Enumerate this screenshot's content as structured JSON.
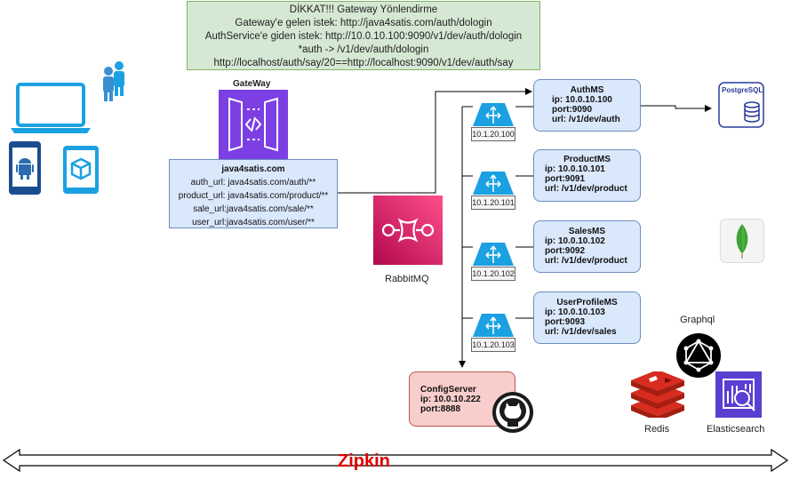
{
  "note": {
    "lines": [
      "DİKKAT!!! Gateway Yönlendirme",
      "Gateway'e gelen istek: http://java4satis.com/auth/dologin",
      "AuthService'e giden istek: http://10.0.10.100:9090/v1/dev/auth/dologin",
      "*auth -> /v1/dev/auth/dologin",
      "http://localhost/auth/say/20==http://localhost:9090/v1/dev/auth/say"
    ]
  },
  "gateway": {
    "label": "GateWay",
    "domain": "java4satis.com",
    "routes": [
      "auth_url: java4satis.com/auth/**",
      "product_url: java4satis.com/product/**",
      "sale_url:java4satis.com/sale/**",
      "user_url:java4satis.com/user/**"
    ]
  },
  "rabbitmq": {
    "label": "RabbitMQ"
  },
  "services": [
    {
      "title": "AuthMS",
      "ip": "ip: 10.0.10.100",
      "port": "port:9090",
      "url": "url: /v1/dev/auth",
      "lb_ip": "10.1.20.100"
    },
    {
      "title": "ProductMS",
      "ip": "ip: 10.0.10.101",
      "port": "port:9091",
      "url": "url: /v1/dev/product",
      "lb_ip": "10.1.20.101"
    },
    {
      "title": "SalesMS",
      "ip": "ip: 10.0.10.102",
      "port": "port:9092",
      "url": "url: /v1/dev/product",
      "lb_ip": "10.1.20.102"
    },
    {
      "title": "UserProfileMS",
      "ip": "ip: 10.0.10.103",
      "port": "port:9093",
      "url": "url: /v1/dev/sales",
      "lb_ip": "10.1.20.103"
    }
  ],
  "config_server": {
    "title": "ConfigServer",
    "ip": "ip: 10.0.10.222",
    "port": "port:8888"
  },
  "postgres": {
    "label": "PostgreSQL"
  },
  "graphql": {
    "label": "Graphql"
  },
  "redis": {
    "label": "Redis"
  },
  "elasticsearch": {
    "label": "Elasticsearch"
  },
  "zipkin": {
    "label": "Zipkin"
  },
  "colors": {
    "note_fill": "#d5e8d4",
    "service_fill": "#dae8fc",
    "config_fill": "#f8cecc",
    "gateway_purple": "#7b3fe4",
    "rabbit_pink": "#e7157b",
    "device_blue": "#1ba1e2",
    "zipkin_red": "#e00000"
  }
}
